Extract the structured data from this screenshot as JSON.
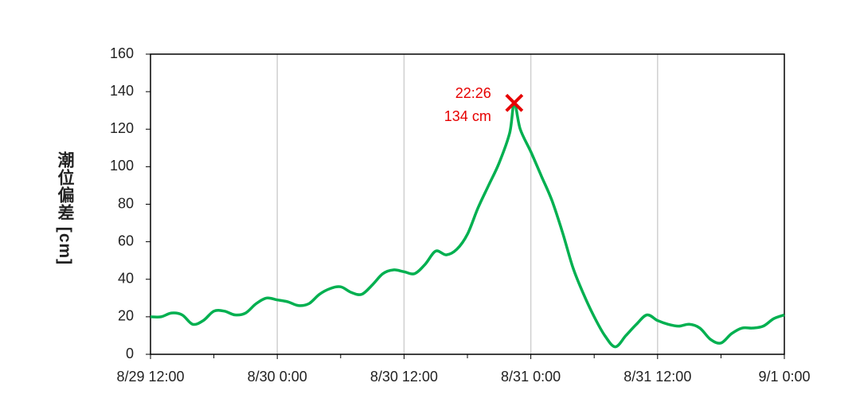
{
  "chart_data": {
    "type": "line",
    "y_label": "潮位偏差 [cm]",
    "x": [
      "8/29 12:00",
      "8/29 13:00",
      "8/29 14:00",
      "8/29 15:00",
      "8/29 16:00",
      "8/29 17:00",
      "8/29 18:00",
      "8/29 19:00",
      "8/29 20:00",
      "8/29 21:00",
      "8/29 22:00",
      "8/29 23:00",
      "8/30 0:00",
      "8/30 1:00",
      "8/30 2:00",
      "8/30 3:00",
      "8/30 4:00",
      "8/30 5:00",
      "8/30 6:00",
      "8/30 7:00",
      "8/30 8:00",
      "8/30 9:00",
      "8/30 10:00",
      "8/30 11:00",
      "8/30 12:00",
      "8/30 13:00",
      "8/30 14:00",
      "8/30 15:00",
      "8/30 16:00",
      "8/30 17:00",
      "8/30 18:00",
      "8/30 19:00",
      "8/30 20:00",
      "8/30 21:00",
      "8/30 22:00",
      "8/30 22:26",
      "8/30 23:00",
      "8/31 0:00",
      "8/31 1:00",
      "8/31 2:00",
      "8/31 3:00",
      "8/31 4:00",
      "8/31 5:00",
      "8/31 6:00",
      "8/31 7:00",
      "8/31 8:00",
      "8/31 9:00",
      "8/31 10:00",
      "8/31 11:00",
      "8/31 12:00",
      "8/31 13:00",
      "8/31 14:00",
      "8/31 15:00",
      "8/31 16:00",
      "8/31 17:00",
      "8/31 18:00",
      "8/31 19:00",
      "8/31 20:00",
      "8/31 21:00",
      "8/31 22:00",
      "8/31 23:00",
      "9/1 0:00"
    ],
    "series": [
      {
        "color": "#00b050",
        "values": [
          20,
          20,
          22,
          21,
          16,
          18,
          23,
          23,
          21,
          22,
          27,
          30,
          29,
          28,
          26,
          27,
          32,
          35,
          36,
          33,
          32,
          37,
          43,
          45,
          44,
          43,
          48,
          55,
          53,
          56,
          64,
          78,
          90,
          102,
          118,
          134,
          120,
          108,
          95,
          82,
          65,
          46,
          32,
          20,
          10,
          4,
          10,
          16,
          21,
          18,
          16,
          15,
          16,
          14,
          8,
          6,
          11,
          14,
          14,
          15,
          19,
          21
        ]
      }
    ],
    "xlim": [
      "8/29 12:00",
      "9/1 0:00"
    ],
    "xticks": [
      "8/29 12:00",
      "8/30 0:00",
      "8/30 12:00",
      "8/31 0:00",
      "8/31 12:00",
      "9/1 0:00"
    ],
    "xminorticks": [
      "8/29 18:00",
      "8/30 6:00",
      "8/30 18:00",
      "8/31 6:00",
      "8/31 18:00"
    ],
    "ylim": [
      0,
      160
    ],
    "yticks": [
      0,
      20,
      40,
      60,
      80,
      100,
      120,
      140,
      160
    ],
    "grid": "x",
    "peak": {
      "x": "8/30 22:26",
      "value": 134,
      "labels": [
        "22:26",
        "134 cm"
      ],
      "color": "#e60000"
    }
  }
}
